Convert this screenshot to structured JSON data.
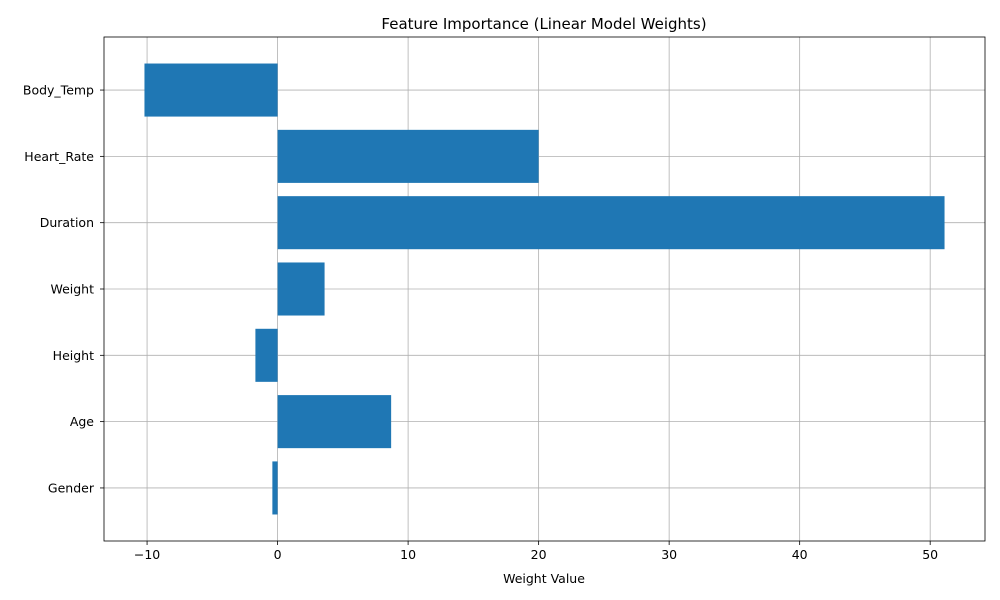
{
  "chart_data": {
    "type": "bar",
    "orientation": "horizontal",
    "title": "Feature Importance (Linear Model Weights)",
    "xlabel": "Weight Value",
    "ylabel": "",
    "categories": [
      "Gender",
      "Age",
      "Height",
      "Weight",
      "Duration",
      "Heart_Rate",
      "Body_Temp"
    ],
    "values": [
      -0.4,
      8.7,
      -1.7,
      3.6,
      51.1,
      20.0,
      -10.2
    ],
    "xlim": [
      -13.3,
      54.2
    ],
    "xticks": [
      -10,
      0,
      10,
      20,
      30,
      40,
      50
    ],
    "xtick_labels": [
      "−10",
      "0",
      "10",
      "20",
      "30",
      "40",
      "50"
    ],
    "grid": true,
    "bar_color": "#1f77b4",
    "grid_color": "#b0b0b0"
  }
}
